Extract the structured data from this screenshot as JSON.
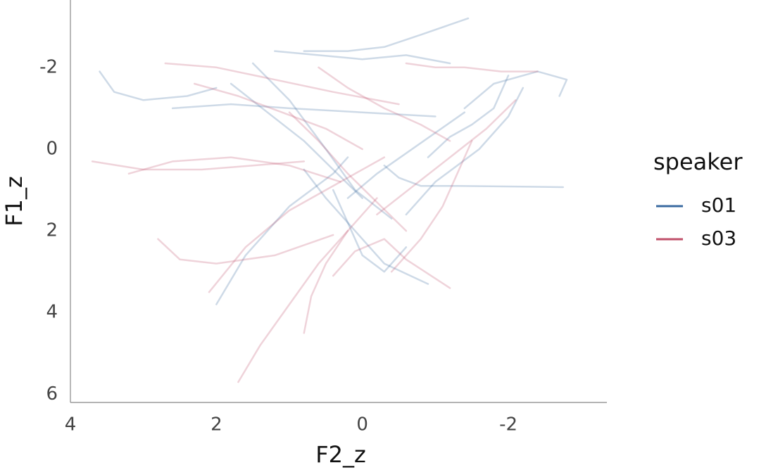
{
  "chart_data": {
    "type": "line",
    "x_label": "F2_z",
    "y_label": "F1_z",
    "xlim": [
      4,
      -3.35
    ],
    "ylim": [
      6.2,
      -3.65
    ],
    "xticks": [
      4,
      2,
      0,
      -2
    ],
    "yticks": [
      -2,
      0,
      2,
      4,
      6
    ],
    "grid": false,
    "legend_title": "speaker",
    "legend_position": "right",
    "series": [
      {
        "name": "s01",
        "color": "#3a6aa0",
        "trajectories": [
          {
            "x": [
              3.6,
              3.4,
              3.0,
              2.4,
              2.0
            ],
            "y": [
              -1.9,
              -1.4,
              -1.2,
              -1.3,
              -1.5
            ]
          },
          {
            "x": [
              -1.4,
              -1.8,
              -2.4,
              -2.8,
              -2.7
            ],
            "y": [
              -1.0,
              -1.6,
              -1.9,
              -1.7,
              -1.3
            ]
          },
          {
            "x": [
              0.4,
              0.2,
              0,
              -0.3,
              -0.6
            ],
            "y": [
              1.0,
              1.8,
              2.6,
              3.0,
              2.4
            ]
          },
          {
            "x": [
              1.5,
              1.0,
              0.5,
              0.1,
              -0.4
            ],
            "y": [
              -2.1,
              -1.2,
              0,
              1.0,
              1.7
            ]
          },
          {
            "x": [
              -0.6,
              -1.0,
              -1.6,
              -2.0,
              -2.2
            ],
            "y": [
              1.6,
              0.8,
              0,
              -0.8,
              -1.5
            ]
          },
          {
            "x": [
              2.0,
              1.6,
              1.0,
              0.4,
              0.2
            ],
            "y": [
              3.8,
              2.6,
              1.4,
              0.6,
              0.2
            ]
          },
          {
            "x": [
              2.6,
              1.8,
              1.0,
              0,
              -1.0
            ],
            "y": [
              -1.0,
              -1.1,
              -1.0,
              -0.9,
              -0.8
            ]
          },
          {
            "x": [
              1.2,
              0.6,
              0,
              -0.6,
              -1.2
            ],
            "y": [
              -2.4,
              -2.3,
              -2.2,
              -2.3,
              -2.1
            ]
          },
          {
            "x": [
              -1.45,
              -0.8,
              -0.3,
              0.2,
              0.8
            ],
            "y": [
              -3.2,
              -2.8,
              -2.5,
              -2.4,
              -2.4
            ]
          },
          {
            "x": [
              -0.3,
              -0.5,
              -0.8,
              -1.3,
              -2.75
            ],
            "y": [
              0.4,
              0.7,
              0.9,
              0.9,
              0.93
            ]
          },
          {
            "x": [
              0.8,
              0.5,
              0.1,
              -0.3,
              -0.9
            ],
            "y": [
              0.5,
              1.2,
              2.0,
              2.8,
              3.3
            ]
          },
          {
            "x": [
              -0.9,
              -1.2,
              -1.5,
              -1.8,
              -2.0
            ],
            "y": [
              0.2,
              -0.3,
              -0.6,
              -1.0,
              -1.8
            ]
          },
          {
            "x": [
              1.8,
              1.3,
              0.8,
              0.4,
              0
            ],
            "y": [
              -1.6,
              -0.9,
              -0.2,
              0.5,
              1.2
            ]
          },
          {
            "x": [
              0.2,
              -0.2,
              -0.6,
              -1.0,
              -1.4
            ],
            "y": [
              1.2,
              0.6,
              0.1,
              -0.4,
              -0.9
            ]
          }
        ]
      },
      {
        "name": "s03",
        "color": "#c0506a",
        "trajectories": [
          {
            "x": [
              3.7,
              3.0,
              2.2,
              1.5,
              0.8
            ],
            "y": [
              0.3,
              0.5,
              0.5,
              0.4,
              0.3
            ]
          },
          {
            "x": [
              2.8,
              2.5,
              2.0,
              1.2,
              0.4
            ],
            "y": [
              2.2,
              2.7,
              2.8,
              2.6,
              2.1
            ]
          },
          {
            "x": [
              1.7,
              1.4,
              1.0,
              0.6,
              0.2
            ],
            "y": [
              5.7,
              4.8,
              3.8,
              2.8,
              2.0
            ]
          },
          {
            "x": [
              0.8,
              0.7,
              0.5,
              0.2,
              -0.2
            ],
            "y": [
              4.5,
              3.6,
              2.8,
              2.0,
              1.2
            ]
          },
          {
            "x": [
              2.7,
              2.0,
              1.2,
              0.4,
              -0.5
            ],
            "y": [
              -2.1,
              -2.0,
              -1.7,
              -1.4,
              -1.1
            ]
          },
          {
            "x": [
              -0.2,
              -0.7,
              -1.2,
              -1.7,
              -2.1
            ],
            "y": [
              1.6,
              0.9,
              0.2,
              -0.5,
              -1.2
            ]
          },
          {
            "x": [
              1.0,
              0.6,
              0.2,
              -0.2,
              -0.6
            ],
            "y": [
              -0.9,
              -0.2,
              0.6,
              1.3,
              2.0
            ]
          },
          {
            "x": [
              2.1,
              1.6,
              1.0,
              0.3,
              -0.3
            ],
            "y": [
              3.5,
              2.4,
              1.5,
              0.8,
              0.2
            ]
          },
          {
            "x": [
              -0.4,
              -0.8,
              -1.1,
              -1.3,
              -1.5
            ],
            "y": [
              3.0,
              2.2,
              1.4,
              0.6,
              -0.2
            ]
          },
          {
            "x": [
              2.3,
              1.7,
              1.1,
              0.5,
              0
            ],
            "y": [
              -1.6,
              -1.3,
              -0.9,
              -0.5,
              0
            ]
          },
          {
            "x": [
              0.6,
              0.2,
              -0.3,
              -0.8,
              -1.2
            ],
            "y": [
              -2.0,
              -1.5,
              -1.0,
              -0.6,
              -0.2
            ]
          },
          {
            "x": [
              -0.6,
              -1.0,
              -1.4,
              -1.9,
              -2.4
            ],
            "y": [
              -2.1,
              -2.0,
              -2.0,
              -1.9,
              -1.9
            ]
          },
          {
            "x": [
              3.2,
              2.6,
              1.8,
              1.0,
              0.3
            ],
            "y": [
              0.6,
              0.3,
              0.2,
              0.4,
              0.8
            ]
          },
          {
            "x": [
              0.4,
              0.1,
              -0.3,
              -0.6,
              -1.2
            ],
            "y": [
              3.1,
              2.5,
              2.2,
              2.7,
              3.4
            ]
          }
        ]
      }
    ]
  }
}
